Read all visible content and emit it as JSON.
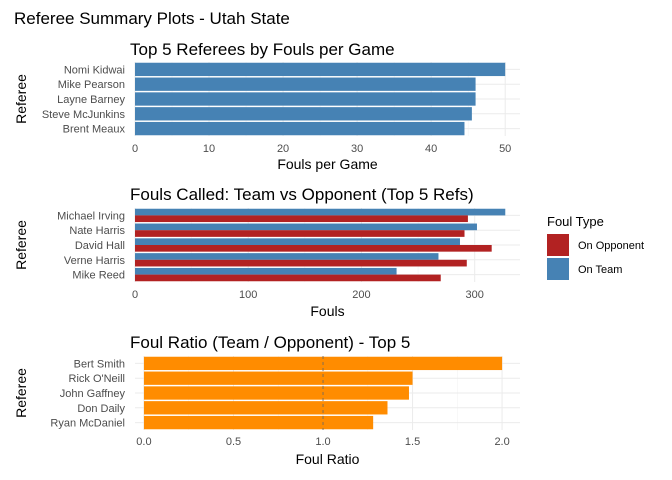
{
  "figure_title": "Referee Summary Plots - Utah State",
  "chart_data": [
    {
      "type": "bar",
      "orientation": "horizontal",
      "title": "Top 5 Referees by Fouls per Game",
      "xlabel": "Fouls per Game",
      "ylabel": "Referee",
      "categories": [
        "Nomi Kidwai",
        "Mike  Pearson",
        "Layne Barney",
        "Steve McJunkins",
        "Brent Meaux"
      ],
      "values": [
        50.0,
        46.0,
        46.0,
        45.5,
        44.5
      ],
      "xlim": [
        0,
        52
      ],
      "xticks": [
        0,
        10,
        20,
        30,
        40,
        50
      ],
      "xtick_labels": [
        "0",
        "10",
        "20",
        "30",
        "40",
        "50"
      ],
      "color": "#4682B4",
      "grid": true
    },
    {
      "type": "bar",
      "orientation": "horizontal",
      "grouped": true,
      "title": "Fouls Called: Team vs Opponent (Top 5 Refs)",
      "xlabel": "Fouls",
      "ylabel": "Referee",
      "categories": [
        "Michael Irving",
        "Nate Harris",
        "David Hall",
        "Verne Harris",
        "Mike Reed"
      ],
      "series": [
        {
          "name": "On Team",
          "color": "#4682B4",
          "values": [
            327,
            302,
            287,
            268,
            231
          ]
        },
        {
          "name": "On Opponent",
          "color": "#B22222",
          "values": [
            294,
            291,
            315,
            293,
            270
          ]
        }
      ],
      "xlim": [
        0,
        340
      ],
      "xticks": [
        0,
        100,
        200,
        300
      ],
      "xtick_labels": [
        "0",
        "100",
        "200",
        "300"
      ],
      "legend": {
        "title": "Foul Type",
        "position": "right",
        "entries": [
          {
            "label": "On Opponent",
            "color": "#B22222"
          },
          {
            "label": "On Team",
            "color": "#4682B4"
          }
        ]
      },
      "grid": true
    },
    {
      "type": "bar",
      "orientation": "horizontal",
      "title": "Foul Ratio (Team / Opponent) - Top 5",
      "xlabel": "Foul Ratio",
      "ylabel": "Referee",
      "categories": [
        "Bert Smith",
        "Rick O'Neill",
        "John Gaffney",
        "Don Daily",
        "Ryan McDaniel"
      ],
      "values": [
        2.0,
        1.5,
        1.48,
        1.36,
        1.28
      ],
      "xlim": [
        -0.05,
        2.1
      ],
      "xticks": [
        0.0,
        0.5,
        1.0,
        1.5,
        2.0
      ],
      "xtick_labels": [
        "0.0",
        "0.5",
        "1.0",
        "1.5",
        "2.0"
      ],
      "reference_line": 1.0,
      "color": "#FF8C00",
      "grid": true
    }
  ]
}
